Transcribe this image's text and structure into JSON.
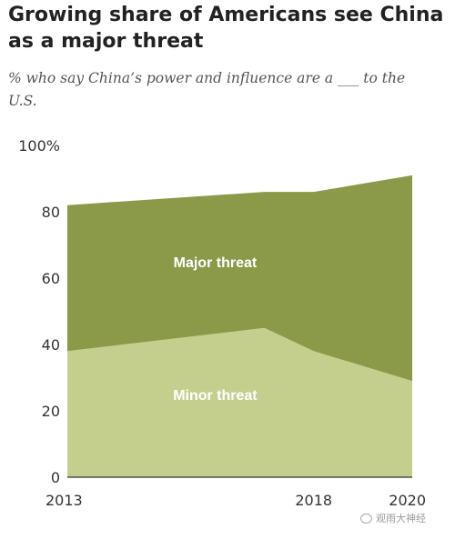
{
  "chart_data": {
    "type": "area",
    "title": "Growing share of Americans see China as a major threat",
    "subtitle": "% who say China’s power and influence are a ___ to the U.S.",
    "x": [
      2013,
      2017,
      2018,
      2020
    ],
    "xlim": [
      2013,
      2020
    ],
    "x_tick_labels": [
      "2013",
      "2018",
      "2020"
    ],
    "y_tick_labels": [
      "0",
      "20",
      "40",
      "60",
      "80",
      "100%"
    ],
    "ylim": [
      0,
      100
    ],
    "grid": false,
    "legend": "inline labels",
    "series": [
      {
        "name": "Minor threat",
        "values": [
          38,
          45,
          38,
          29
        ],
        "color": "#c4cf8e",
        "label_color": "#ffffff"
      },
      {
        "name": "Major threat",
        "values": [
          44,
          41,
          48,
          62
        ],
        "color": "#8a9a48",
        "label_color": "#ffffff"
      }
    ]
  },
  "watermark": {
    "text": "观雨大神经"
  }
}
